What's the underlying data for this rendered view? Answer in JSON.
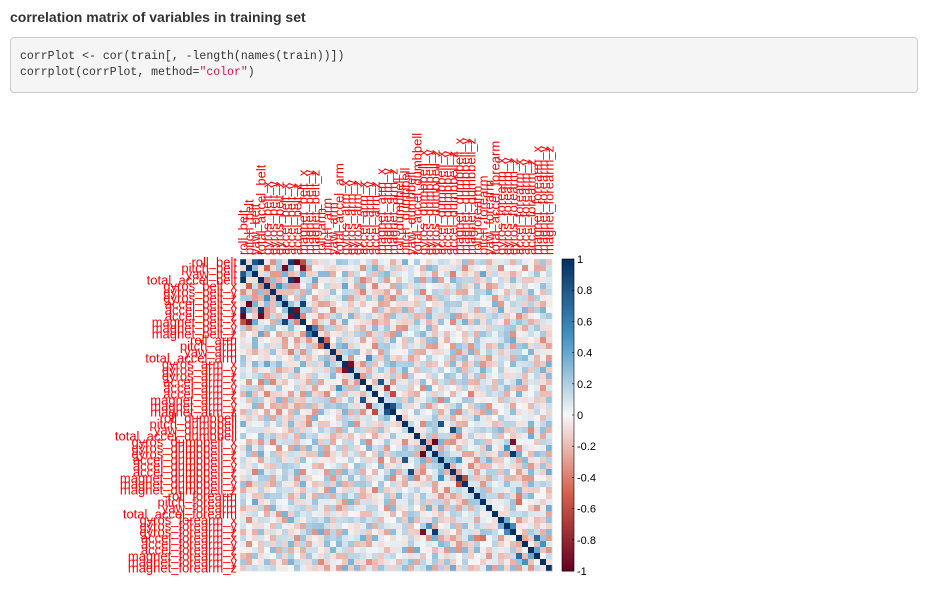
{
  "heading": "correlation matrix of variables in training set",
  "code": {
    "line1": "corrPlot <- cor(train[, -length(names(train))])",
    "line2_prefix": "corrplot(corrPlot, method=",
    "line2_string": "\"color\"",
    "line2_suffix": ")"
  },
  "chart_data": {
    "type": "heatmap",
    "method": "color",
    "variables": [
      "roll_belt",
      "pitch_belt",
      "yaw_belt",
      "total_accel_belt",
      "gyros_belt_x",
      "gyros_belt_y",
      "gyros_belt_z",
      "accel_belt_x",
      "accel_belt_y",
      "accel_belt_z",
      "magnet_belt_x",
      "magnet_belt_y",
      "magnet_belt_z",
      "roll_arm",
      "pitch_arm",
      "yaw_arm",
      "total_accel_arm",
      "gyros_arm_x",
      "gyros_arm_y",
      "gyros_arm_z",
      "accel_arm_x",
      "accel_arm_y",
      "accel_arm_z",
      "magnet_arm_x",
      "magnet_arm_y",
      "magnet_arm_z",
      "roll_dumbbell",
      "pitch_dumbbell",
      "yaw_dumbbell",
      "total_accel_dumbbell",
      "gyros_dumbbell_x",
      "gyros_dumbbell_y",
      "gyros_dumbbell_z",
      "accel_dumbbell_x",
      "accel_dumbbell_y",
      "accel_dumbbell_z",
      "magnet_dumbbell_x",
      "magnet_dumbbell_y",
      "magnet_dumbbell_z",
      "roll_forearm",
      "pitch_forearm",
      "yaw_forearm",
      "total_accel_forearm",
      "gyros_forearm_x",
      "gyros_forearm_y",
      "gyros_forearm_z",
      "accel_forearm_x",
      "accel_forearm_y",
      "accel_forearm_z",
      "magnet_forearm_x",
      "magnet_forearm_y",
      "magnet_forearm_z"
    ],
    "strong_correlations": [
      {
        "a": "roll_belt",
        "b": "yaw_belt",
        "r": 0.8
      },
      {
        "a": "roll_belt",
        "b": "total_accel_belt",
        "r": 0.98
      },
      {
        "a": "roll_belt",
        "b": "accel_belt_y",
        "r": 0.92
      },
      {
        "a": "roll_belt",
        "b": "accel_belt_z",
        "r": -0.99
      },
      {
        "a": "roll_belt",
        "b": "magnet_belt_x",
        "r": -0.6
      },
      {
        "a": "pitch_belt",
        "b": "accel_belt_x",
        "r": -0.97
      },
      {
        "a": "pitch_belt",
        "b": "magnet_belt_x",
        "r": -0.88
      },
      {
        "a": "pitch_belt",
        "b": "gyros_belt_x",
        "r": -0.5
      },
      {
        "a": "total_accel_belt",
        "b": "accel_belt_y",
        "r": 0.93
      },
      {
        "a": "total_accel_belt",
        "b": "accel_belt_z",
        "r": -0.97
      },
      {
        "a": "accel_belt_y",
        "b": "accel_belt_z",
        "r": -0.93
      },
      {
        "a": "accel_belt_x",
        "b": "magnet_belt_x",
        "r": 0.89
      },
      {
        "a": "gyros_belt_x",
        "b": "gyros_belt_z",
        "r": 0.5
      },
      {
        "a": "magnet_belt_y",
        "b": "magnet_belt_z",
        "r": 0.6
      },
      {
        "a": "gyros_arm_x",
        "b": "gyros_arm_y",
        "r": -0.92
      },
      {
        "a": "accel_arm_x",
        "b": "magnet_arm_x",
        "r": 0.81
      },
      {
        "a": "magnet_arm_y",
        "b": "magnet_arm_z",
        "r": 0.81
      },
      {
        "a": "accel_arm_y",
        "b": "magnet_arm_y",
        "r": -0.7
      },
      {
        "a": "accel_arm_z",
        "b": "magnet_arm_z",
        "r": -0.6
      },
      {
        "a": "yaw_dumbbell",
        "b": "accel_dumbbell_z",
        "r": 0.85
      },
      {
        "a": "gyros_dumbbell_x",
        "b": "gyros_dumbbell_z",
        "r": -0.98
      },
      {
        "a": "gyros_dumbbell_x",
        "b": "gyros_forearm_z",
        "r": -0.91
      },
      {
        "a": "gyros_dumbbell_z",
        "b": "gyros_forearm_z",
        "r": 0.95
      },
      {
        "a": "gyros_dumbbell_y",
        "b": "gyros_forearm_y",
        "r": 0.5
      },
      {
        "a": "gyros_forearm_y",
        "b": "gyros_forearm_z",
        "r": 0.53
      },
      {
        "a": "accel_dumbbell_x",
        "b": "pitch_dumbbell",
        "r": 0.81
      },
      {
        "a": "magnet_dumbbell_x",
        "b": "magnet_dumbbell_y",
        "r": -0.6
      },
      {
        "a": "accel_dumbbell_x",
        "b": "magnet_dumbbell_x",
        "r": 0.5
      },
      {
        "a": "accel_forearm_x",
        "b": "magnet_forearm_x",
        "r": 0.69
      },
      {
        "a": "pitch_forearm",
        "b": "accel_forearm_x",
        "r": -0.45
      },
      {
        "a": "accel_forearm_y",
        "b": "magnet_forearm_y",
        "r": 0.5
      },
      {
        "a": "total_accel_arm",
        "b": "accel_arm_y",
        "r": 0.5
      },
      {
        "a": "roll_arm",
        "b": "pitch_arm",
        "r": -0.5
      },
      {
        "a": "yaw_belt",
        "b": "pitch_belt",
        "r": 0.3
      }
    ],
    "colorbar": {
      "ticks": [
        1,
        0.8,
        0.6,
        0.4,
        0.2,
        0,
        -0.2,
        -0.4,
        -0.6,
        -0.8,
        -1
      ],
      "tick_labels": [
        "1",
        "0.8",
        "0.6",
        "0.4",
        "0.2",
        "0",
        "-0.2",
        "-0.4",
        "-0.6",
        "-0.8",
        "-1"
      ],
      "range": [
        -1,
        1
      ],
      "colors": {
        "neg_strong": "#67001f",
        "neg_mid": "#d6604d",
        "neutral": "#f7f7f7",
        "pos_mid": "#4393c3",
        "pos_strong": "#053061"
      }
    },
    "label_color": "#ff0000"
  }
}
